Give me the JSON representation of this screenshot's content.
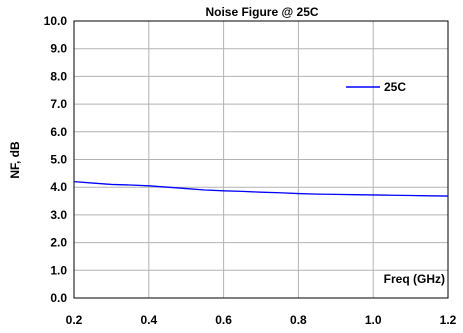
{
  "chart_data": {
    "type": "line",
    "title": "Noise Figure @ 25C",
    "xlabel": "Freq (GHz)",
    "ylabel": "NF, dB",
    "xlim": [
      0.2,
      1.2
    ],
    "ylim": [
      0.0,
      10.0
    ],
    "x_ticks": [
      "0.2",
      "0.4",
      "0.6",
      "0.8",
      "1.0",
      "1.2"
    ],
    "y_ticks": [
      "0.0",
      "1.0",
      "2.0",
      "3.0",
      "4.0",
      "5.0",
      "6.0",
      "7.0",
      "8.0",
      "9.0",
      "10.0"
    ],
    "grid": true,
    "legend_position": "top-right",
    "series": [
      {
        "name": "25C",
        "color": "#0000ff",
        "x": [
          0.2,
          0.25,
          0.3,
          0.35,
          0.4,
          0.45,
          0.5,
          0.55,
          0.6,
          0.65,
          0.7,
          0.75,
          0.8,
          0.85,
          0.9,
          0.95,
          1.0,
          1.05,
          1.1,
          1.15,
          1.2
        ],
        "y": [
          4.2,
          4.15,
          4.1,
          4.08,
          4.05,
          4.0,
          3.95,
          3.9,
          3.87,
          3.85,
          3.82,
          3.8,
          3.77,
          3.75,
          3.74,
          3.73,
          3.72,
          3.71,
          3.7,
          3.69,
          3.68
        ]
      }
    ]
  }
}
